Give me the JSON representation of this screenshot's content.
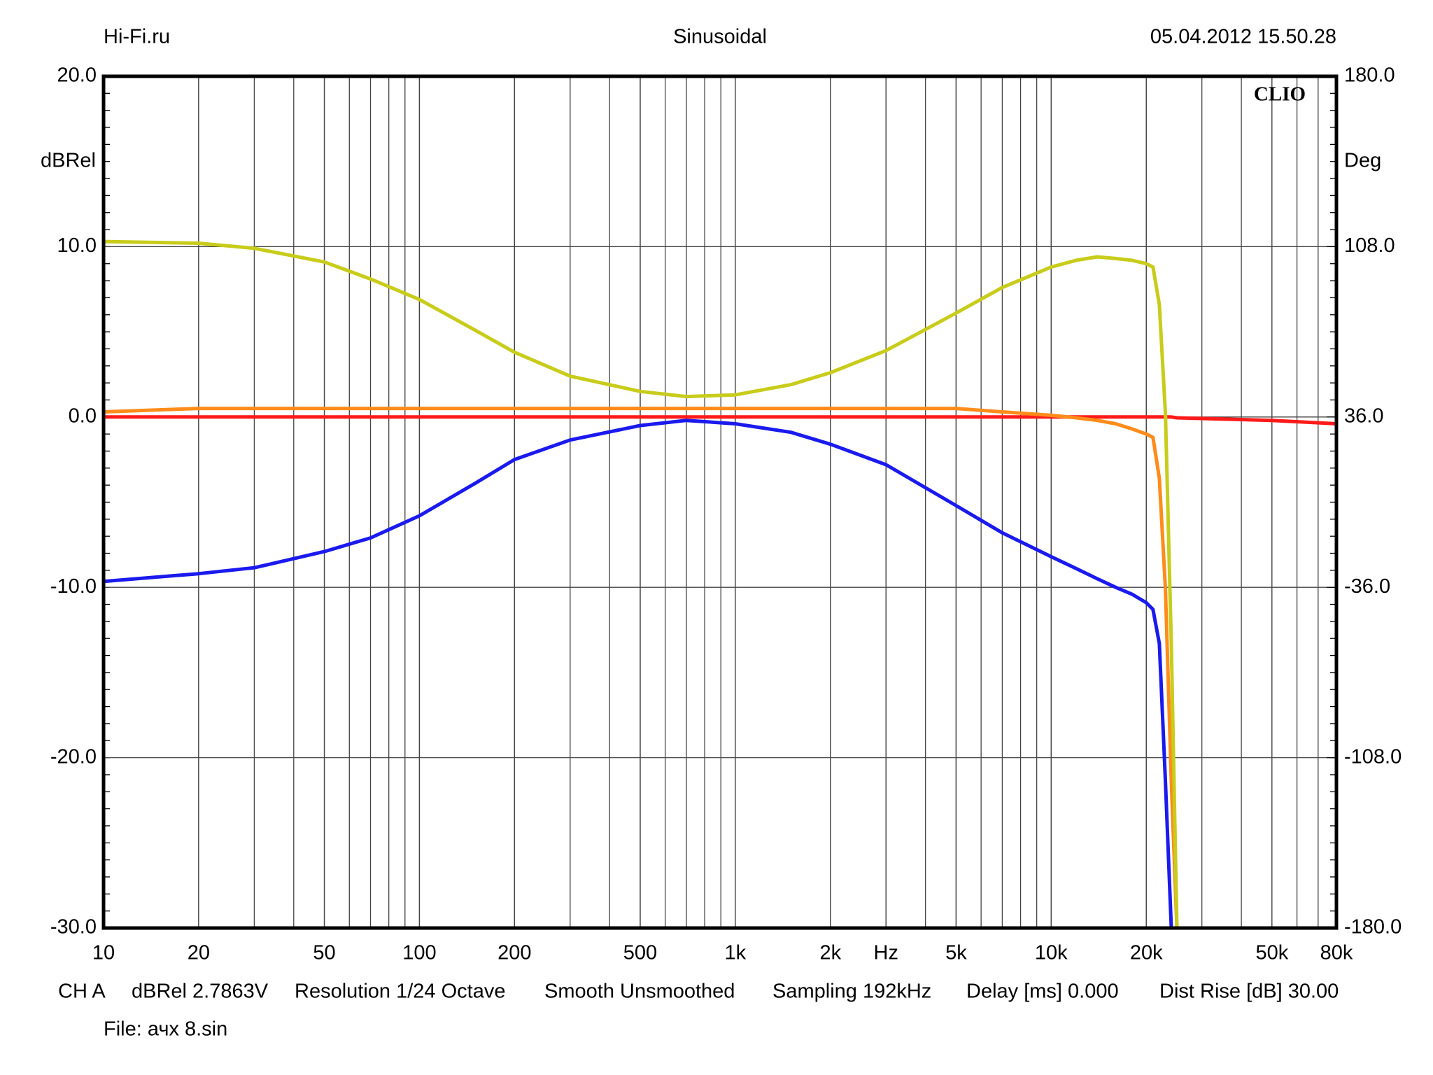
{
  "chart_data": {
    "type": "line",
    "title": "Sinusoidal",
    "source": "Hi-Fi.ru",
    "date": "05.04.2012 15.50.28",
    "logo": "CLIO",
    "ylabel": "dBRel",
    "y2label": "Deg",
    "footer": [
      "CH A",
      "dBRel 2.7863V",
      "Resolution 1/24 Octave",
      "Smooth Unsmoothed",
      "Sampling 192kHz",
      "Delay [ms] 0.000",
      "Dist Rise [dB] 30.00"
    ],
    "file": "File: ачх 8.sin",
    "xscale": "log",
    "grid": true,
    "xlim": [
      10,
      80000
    ],
    "xticks": [
      10,
      20,
      50,
      100,
      200,
      500,
      {
        "value": 1000,
        "label": "1k"
      },
      {
        "value": 2000,
        "label": "2k"
      },
      {
        "value": 3000,
        "label": "Hz"
      },
      {
        "value": 5000,
        "label": "5k"
      },
      {
        "value": 10000,
        "label": "10k"
      },
      {
        "value": 20000,
        "label": "20k"
      },
      {
        "value": 50000,
        "label": "50k"
      },
      {
        "value": 80000,
        "label": "80k"
      }
    ],
    "ylim": [
      -30,
      20
    ],
    "yticks": [
      {
        "value": 20,
        "label": "20.0"
      },
      {
        "value": 10,
        "label": "10.0"
      },
      {
        "value": 0,
        "label": "0.0"
      },
      {
        "value": -10,
        "label": "-10.0"
      },
      {
        "value": -20,
        "label": "-20.0"
      },
      {
        "value": -30,
        "label": "-30.0"
      }
    ],
    "y2lim": [
      -180,
      180
    ],
    "y2ticks": [
      {
        "value": 180,
        "label": "180.0"
      },
      {
        "value": 108,
        "label": "108.0"
      },
      {
        "value": 36,
        "label": "36.0"
      },
      {
        "value": -36,
        "label": "-36.0"
      },
      {
        "value": -108,
        "label": "-108.0"
      },
      {
        "value": -180,
        "label": "-180.0"
      }
    ],
    "x": [
      10,
      20,
      30,
      50,
      70,
      100,
      150,
      200,
      300,
      500,
      700,
      1000,
      1500,
      2000,
      3000,
      5000,
      7000,
      10000,
      12000,
      14000,
      16000,
      18000,
      20000,
      21000,
      22000,
      23000,
      24000,
      25000,
      50000,
      80000
    ],
    "series": [
      {
        "color": "#ff1a1a",
        "values": [
          0,
          0,
          0,
          0,
          0,
          0,
          0,
          0,
          0,
          0,
          0,
          0,
          0,
          0,
          0,
          0,
          0,
          0,
          0,
          0,
          0,
          0,
          0,
          0,
          0,
          0,
          0,
          -0.05,
          -0.2,
          -0.4
        ]
      },
      {
        "color": "#ff8c1a",
        "values": [
          0.3,
          0.5,
          0.5,
          0.5,
          0.5,
          0.5,
          0.5,
          0.5,
          0.5,
          0.5,
          0.5,
          0.5,
          0.5,
          0.5,
          0.5,
          0.5,
          0.3,
          0.1,
          -0.05,
          -0.2,
          -0.4,
          -0.7,
          -1.0,
          -1.2,
          -3.6,
          -10.1,
          -21.4,
          -30,
          null,
          null
        ]
      },
      {
        "color": "#c8cc1a",
        "values": [
          10.3,
          10.2,
          9.9,
          9.1,
          8.1,
          6.9,
          5.1,
          3.8,
          2.4,
          1.5,
          1.2,
          1.3,
          1.9,
          2.6,
          3.9,
          6.1,
          7.6,
          8.8,
          9.2,
          9.4,
          9.3,
          9.2,
          9.0,
          8.8,
          6.6,
          0.2,
          -13.3,
          -30,
          null,
          null
        ]
      },
      {
        "color": "#1a1aee",
        "values": [
          -9.65,
          -9.2,
          -8.85,
          -7.9,
          -7.1,
          -5.8,
          -3.9,
          -2.5,
          -1.35,
          -0.5,
          -0.2,
          -0.4,
          -0.9,
          -1.6,
          -2.8,
          -5.2,
          -6.8,
          -8.2,
          -8.9,
          -9.5,
          -10.0,
          -10.4,
          -10.9,
          -11.3,
          -13.3,
          -21.4,
          -30,
          null,
          null,
          null
        ]
      }
    ]
  }
}
